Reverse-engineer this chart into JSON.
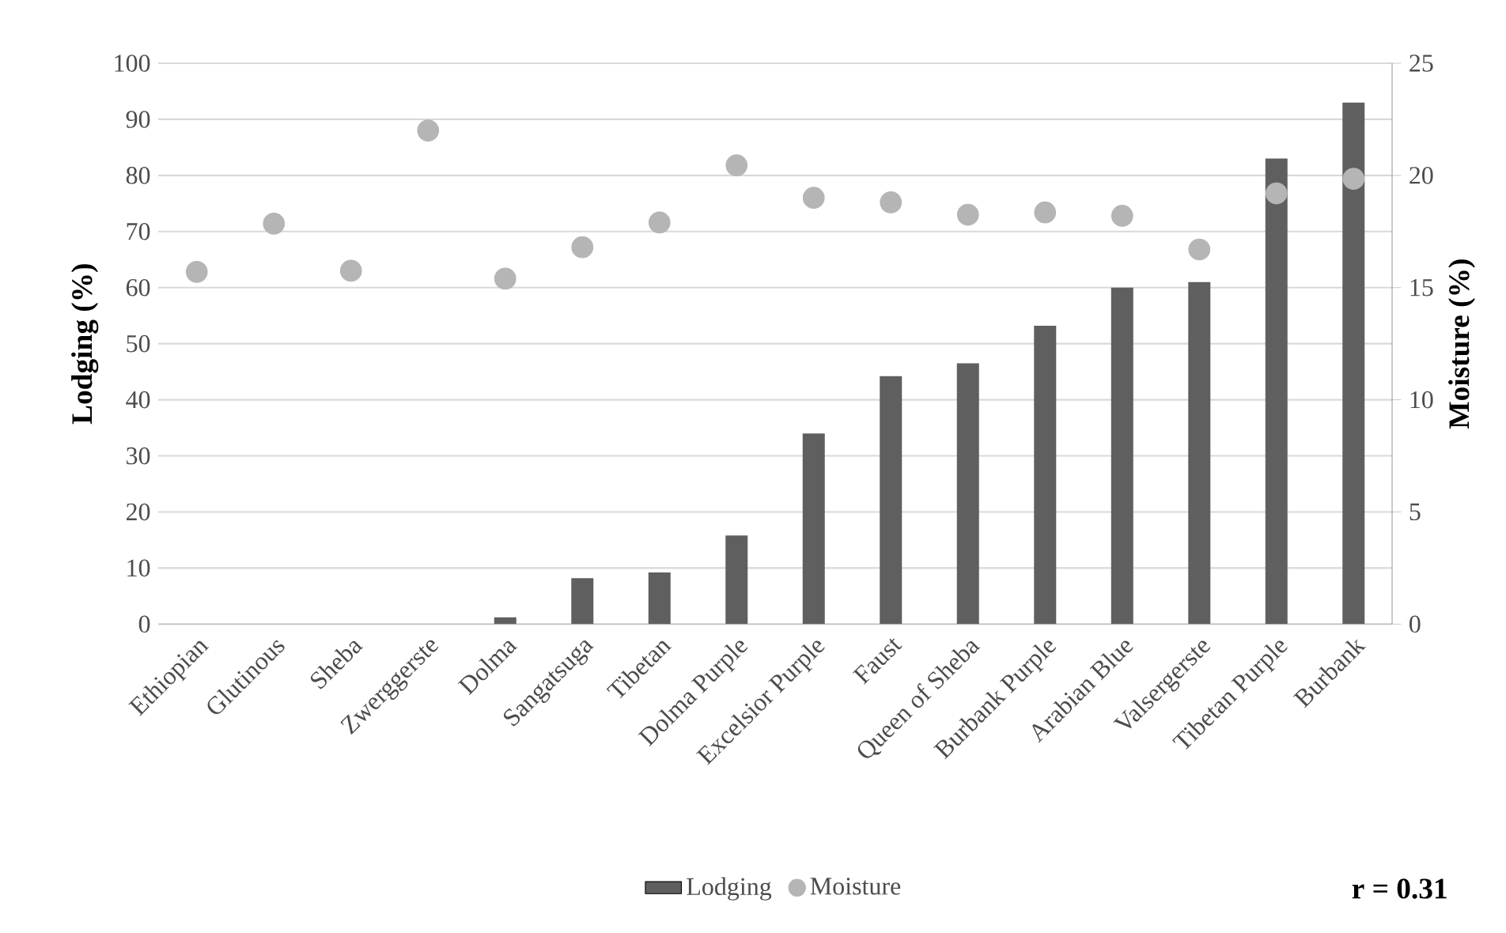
{
  "chart_data": {
    "type": "bar",
    "categories": [
      "Ethiopian",
      "Glutinous",
      "Sheba",
      "Zwerggerste",
      "Dolma",
      "Sangatsuga",
      "Tibetan",
      "Dolma Purple",
      "Excelsior Purple",
      "Faust",
      "Queen of Sheba",
      "Burbank Purple",
      "Arabian Blue",
      "Valsergerste",
      "Tibetan Purple",
      "Burbank"
    ],
    "series": [
      {
        "name": "Lodging",
        "color": "#5f5f5f",
        "values": [
          0,
          0,
          0,
          0,
          1.2,
          8.2,
          9.2,
          15.8,
          34,
          44.2,
          46.5,
          53.2,
          60,
          61,
          83,
          93
        ]
      },
      {
        "name": "Moisture",
        "type": "scatter",
        "axis": "y2",
        "color": "#b5b5b5",
        "values": [
          15.7,
          17.85,
          15.75,
          22,
          15.4,
          16.8,
          17.9,
          20.45,
          19,
          18.8,
          18.25,
          18.35,
          18.2,
          16.7,
          19.2,
          19.85
        ]
      }
    ],
    "ylabel": "Lodging (%)",
    "y2label": "Moisture (%)",
    "ylim": [
      0,
      100
    ],
    "yticks": [
      0,
      10,
      20,
      30,
      40,
      50,
      60,
      70,
      80,
      90,
      100
    ],
    "y2lim": [
      0,
      25
    ],
    "y2ticks": [
      0,
      5,
      10,
      15,
      20,
      25
    ],
    "grid": "y",
    "legend": "bottom",
    "annotations": [
      "r = 0.31"
    ]
  }
}
